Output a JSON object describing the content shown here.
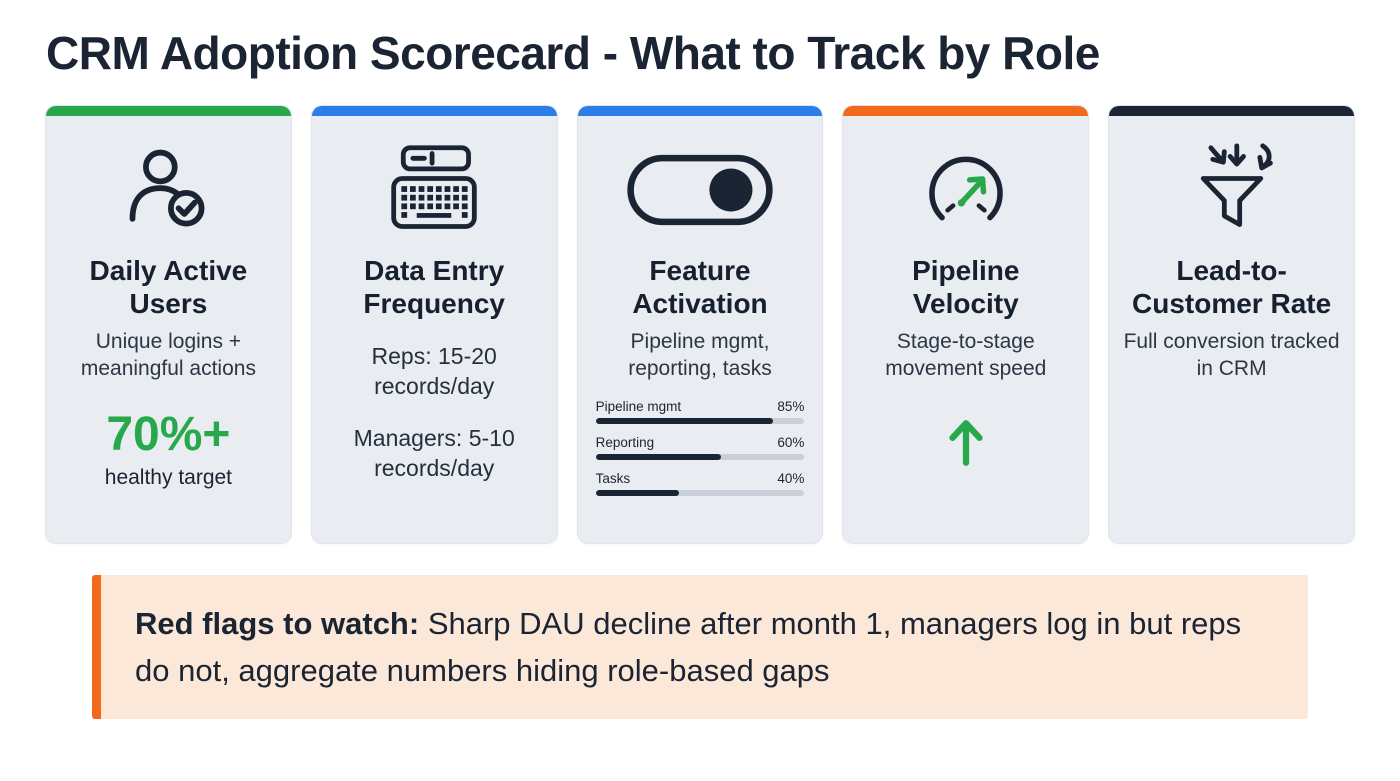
{
  "title": "CRM Adoption Scorecard - What to Track by Role",
  "colors": {
    "green": "#27a84a",
    "blue": "#2b7de9",
    "orange": "#f2691c",
    "navy": "#1b2433",
    "card_bg": "#e9edf2",
    "callout_bg": "#fce8d8"
  },
  "cards": [
    {
      "icon": "user-check-icon",
      "accent": "#27a84a",
      "title": "Daily Active Users",
      "subtitle": "Unique logins + meaningful actions",
      "stat": "70%+",
      "stat_caption": "healthy target"
    },
    {
      "icon": "keyboard-icon",
      "accent": "#2b7de9",
      "title": "Data Entry Frequency",
      "line1": "Reps: 15-20 records/day",
      "line2": "Managers: 5-10 records/day"
    },
    {
      "icon": "toggle-icon",
      "accent": "#2b7de9",
      "title": "Feature Activation",
      "subtitle": "Pipeline mgmt, reporting, tasks"
    },
    {
      "icon": "gauge-icon",
      "accent": "#f2691c",
      "title": "Pipeline Velocity",
      "subtitle": "Stage-to-stage movement speed"
    },
    {
      "icon": "funnel-icon",
      "accent": "#1b2433",
      "title": "Lead-to-Customer Rate",
      "subtitle": "Full conversion tracked in CRM"
    }
  ],
  "chart_data": {
    "type": "bar",
    "title": "Feature Activation",
    "categories": [
      "Pipeline mgmt",
      "Reporting",
      "Tasks"
    ],
    "values": [
      85,
      60,
      40
    ],
    "unit": "%",
    "xlim": [
      0,
      100
    ],
    "orientation": "horizontal"
  },
  "callout": {
    "lead": "Red flags to watch:",
    "body": " Sharp DAU decline after month 1, managers log in but reps do not, aggregate numbers hiding role-based gaps"
  }
}
